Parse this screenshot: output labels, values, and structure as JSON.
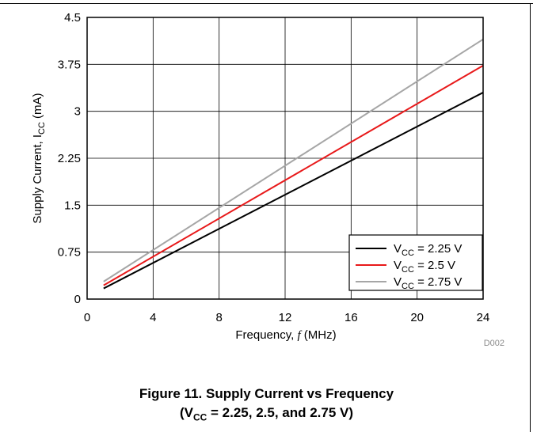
{
  "chart_data": {
    "type": "line",
    "x_axis": {
      "label": "Frequency, ",
      "label_italic": "f",
      "label_unit": " (MHz)",
      "min": 0,
      "max": 24,
      "ticks": [
        0,
        4,
        8,
        12,
        16,
        20,
        24
      ]
    },
    "y_axis": {
      "label_prefix": "Supply Current, I",
      "label_sub": "CC",
      "label_unit": " (mA)",
      "min": 0,
      "max": 4.5,
      "ticks": [
        0,
        0.75,
        1.5,
        2.25,
        3,
        3.75,
        4.5
      ],
      "tick_labels": [
        "0",
        "0.75",
        "1.5",
        "2.25",
        "3",
        "3.75",
        "4.5"
      ]
    },
    "grid": true,
    "legend_position": "bottom-right",
    "series": [
      {
        "name_prefix": "V",
        "name_sub": "CC",
        "name_suffix": " = 2.25 V",
        "color": "#000000",
        "x": [
          1,
          24
        ],
        "y": [
          0.17,
          3.3
        ]
      },
      {
        "name_prefix": "V",
        "name_sub": "CC",
        "name_suffix": " = 2.5 V",
        "color": "#e8191a",
        "x": [
          1,
          24
        ],
        "y": [
          0.22,
          3.73
        ]
      },
      {
        "name_prefix": "V",
        "name_sub": "CC",
        "name_suffix": " = 2.75 V",
        "color": "#a6a6a6",
        "x": [
          1,
          24
        ],
        "y": [
          0.28,
          4.15
        ]
      }
    ],
    "figure_code": "D002"
  },
  "caption": {
    "line1": "Figure 11. Supply Current vs Frequency",
    "line2_prefix": "(V",
    "line2_sub": "CC",
    "line2_suffix": " = 2.25, 2.5, and 2.75 V)"
  }
}
